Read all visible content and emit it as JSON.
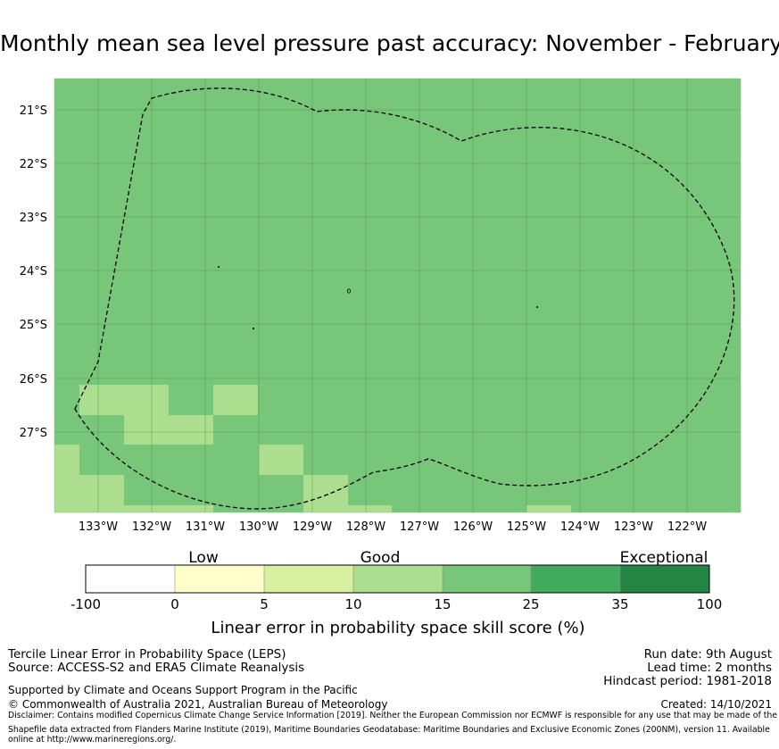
{
  "title": "Monthly mean sea level pressure past accuracy: November - February",
  "map": {
    "lat_labels": [
      "21°S",
      "22°S",
      "23°S",
      "24°S",
      "25°S",
      "26°S",
      "27°S"
    ],
    "lon_labels": [
      "133°W",
      "132°W",
      "131°W",
      "130°W",
      "129°W",
      "128°W",
      "127°W",
      "126°W",
      "125°W",
      "124°W",
      "123°W",
      "122°W"
    ],
    "colors": {
      "background_cells": "#78c679",
      "good_cells": "#addd8e",
      "boundary": "#000000"
    }
  },
  "colorbar": {
    "category_labels": [
      "Low",
      "Good",
      "Exceptional"
    ],
    "tick_labels": [
      "-100",
      "0",
      "5",
      "10",
      "15",
      "25",
      "35",
      "100"
    ],
    "colors": [
      "#ffffff",
      "#ffffcc",
      "#d9f0a3",
      "#addd8e",
      "#78c679",
      "#41ab5d",
      "#238443"
    ],
    "axis_label": "Linear error in probability space skill score (%)"
  },
  "info": {
    "method": "Tercile Linear Error in Probability Space (LEPS)",
    "source": "Source: ACCESS-S2 and ERA5 Climate Reanalysis",
    "run_date": "Run date: 9th August",
    "lead_time": "Lead time: 2 months",
    "hindcast": "Hindcast period: 1981-2018",
    "support": "Supported by Climate and Oceans Support Program in the Pacific",
    "copyright": "© Commonwealth of Australia 2021, Australian Bureau of Meteorology",
    "created": "Created: 14/10/2021",
    "disclaimer": "Disclaimer: Contains modified Copernicus Climate Change Service Information [2019]. Neither the European Commission nor ECMWF is responsible for any use that may be made of the Copernicus Information or Data it contains.",
    "shapefile": "Shapefile data extracted from Flanders Marine Institute (2019), Maritime Boundaries Geodatabase: Maritime Boundaries and Exclusive Economic Zones (200NM), version 11. Available online at http://www.marineregions.org/."
  }
}
